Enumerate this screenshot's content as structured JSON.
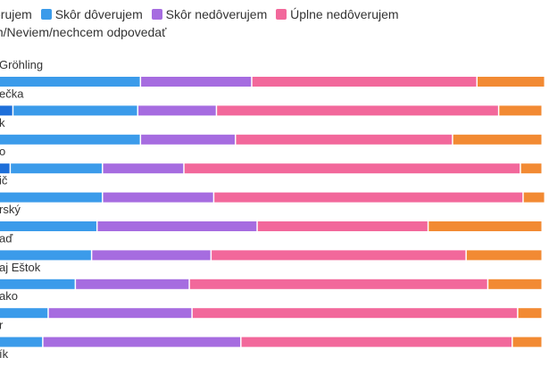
{
  "colors": {
    "uplne_doverujem": "#1e6fd9",
    "skor_doverujem": "#3b9bea",
    "skor_nedoverujem": "#a66ce0",
    "uplne_nedoverujem": "#f2689b",
    "neviem": "#f28a33",
    "separator": "#ffffff"
  },
  "legend": {
    "items": [
      {
        "label": "verujem",
        "color_key": "uplne_doverujem"
      },
      {
        "label": "Skôr dôverujem",
        "color_key": "skor_doverujem"
      },
      {
        "label": "Skôr nedôverujem",
        "color_key": "skor_nedoverujem"
      },
      {
        "label": "Úplne nedôverujem",
        "color_key": "uplne_nedoverujem"
      }
    ],
    "second_row": "m/Neviem/nechcem odpovedať"
  },
  "chart_data": {
    "type": "bar",
    "orientation": "horizontal",
    "stacked": true,
    "categories": [
      "Gröhling",
      "ečka",
      "k",
      "o",
      "ič",
      "rský",
      "aď",
      "aj Eštok",
      "ako",
      "r",
      "ík"
    ],
    "series": [
      {
        "name": "verujem",
        "color_key": "uplne_doverujem",
        "values": [
          0,
          2.5,
          0,
          2,
          0,
          0,
          0,
          0,
          0,
          0,
          0
        ]
      },
      {
        "name": "Skôr dôverujem",
        "color_key": "skor_doverujem",
        "values": [
          26,
          23,
          26,
          17,
          19,
          18,
          17,
          14,
          9,
          8,
          0
        ]
      },
      {
        "name": "Skôr nedôverujem",
        "color_key": "skor_nedoverujem",
        "values": [
          20.5,
          14.5,
          17.5,
          15,
          20.5,
          29.5,
          22,
          21,
          26.5,
          36.5,
          7.5
        ]
      },
      {
        "name": "Úplne nedôverujem",
        "color_key": "uplne_nedoverujem",
        "values": [
          41.5,
          52,
          40,
          62,
          57,
          31.5,
          47,
          55,
          60,
          50,
          23.5
        ]
      },
      {
        "name": "m/Neviem/nechcem odpovedať",
        "color_key": "neviem",
        "values": [
          12.5,
          8,
          16.5,
          4,
          4,
          21,
          14,
          10,
          4.5,
          5.5,
          69
        ]
      }
    ],
    "xlim": [
      0,
      100
    ]
  }
}
